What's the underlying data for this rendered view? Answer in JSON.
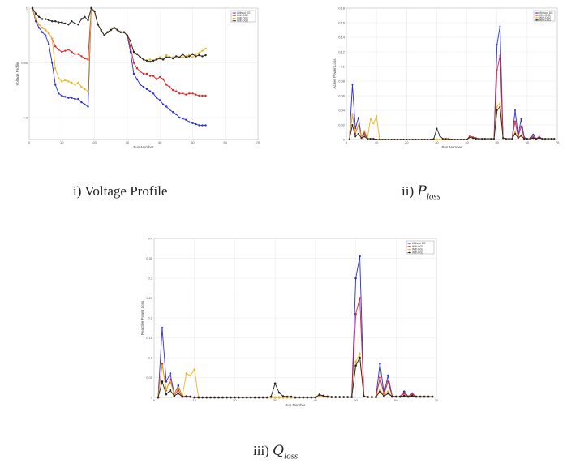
{
  "captions": {
    "voltage": "i) Voltage Profile",
    "ploss_prefix": "ii) ",
    "ploss_sym": "P",
    "ploss_sub": "loss",
    "qloss_prefix": "iii) ",
    "qloss_sym": "Q",
    "qloss_sub": "loss"
  },
  "colors": {
    "blue": "#2b2fd6",
    "red": "#e02626",
    "orange": "#f0b419",
    "black": "#222222"
  },
  "chart_data": [
    {
      "id": "voltage",
      "type": "line",
      "xlabel": "Bus Number",
      "ylabel": "Voltage Profile",
      "xlim": [
        0,
        70
      ],
      "ylim": [
        0.88,
        1.0
      ],
      "xticks": [
        0,
        10,
        20,
        30,
        40,
        50,
        60,
        70
      ],
      "yticks": [
        0.9,
        0.95,
        1.0
      ],
      "ytick_labels": [
        "0.9",
        "0.95",
        "1"
      ],
      "grid": true,
      "legend": "top-right",
      "legend_labels": [
        "Without DG",
        "With DG1",
        "With DG2",
        "With DG3"
      ],
      "series_colors": [
        "blue",
        "red",
        "orange",
        "black"
      ],
      "series": [
        {
          "values": [
            1.0,
            0.988,
            0.982,
            0.978,
            0.975,
            0.967,
            0.95,
            0.93,
            0.922,
            0.92,
            0.919,
            0.918,
            0.918,
            0.917,
            0.917,
            0.914,
            0.912,
            0.91,
            1.0,
            0.997,
            0.985,
            0.98,
            0.975,
            0.978,
            0.98,
            0.982,
            0.98,
            0.978,
            0.978,
            0.975,
            0.96,
            0.94,
            0.935,
            0.93,
            0.928,
            0.926,
            0.924,
            0.922,
            0.918,
            0.916,
            0.912,
            0.91,
            0.907,
            0.905,
            0.903,
            0.9,
            0.899,
            0.898,
            0.896,
            0.895,
            0.894,
            0.893,
            0.893,
            0.893
          ]
        },
        {
          "values": [
            1.0,
            0.99,
            0.985,
            0.982,
            0.98,
            0.977,
            0.972,
            0.965,
            0.962,
            0.96,
            0.961,
            0.962,
            0.96,
            0.958,
            0.958,
            0.956,
            0.954,
            0.953,
            1.0,
            0.997,
            0.985,
            0.98,
            0.975,
            0.978,
            0.98,
            0.982,
            0.98,
            0.978,
            0.978,
            0.975,
            0.965,
            0.95,
            0.945,
            0.942,
            0.94,
            0.94,
            0.938,
            0.938,
            0.935,
            0.937,
            0.935,
            0.93,
            0.928,
            0.925,
            0.924,
            0.922,
            0.922,
            0.921,
            0.922,
            0.922,
            0.921,
            0.92,
            0.92,
            0.92
          ]
        },
        {
          "values": [
            1.0,
            0.99,
            0.985,
            0.982,
            0.98,
            0.977,
            0.972,
            0.945,
            0.936,
            0.933,
            0.934,
            0.933,
            0.932,
            0.93,
            0.932,
            0.928,
            0.926,
            0.924,
            1.0,
            0.997,
            0.985,
            0.98,
            0.975,
            0.978,
            0.98,
            0.982,
            0.98,
            0.978,
            0.978,
            0.975,
            0.97,
            0.96,
            0.958,
            0.955,
            0.953,
            0.952,
            0.953,
            0.952,
            0.954,
            0.955,
            0.953,
            0.957,
            0.955,
            0.955,
            0.956,
            0.955,
            0.955,
            0.956,
            0.957,
            0.955,
            0.958,
            0.959,
            0.961,
            0.963
          ]
        },
        {
          "values": [
            1.0,
            0.995,
            0.992,
            0.99,
            0.99,
            0.989,
            0.988,
            0.988,
            0.987,
            0.987,
            0.986,
            0.985,
            0.988,
            0.986,
            0.985,
            0.99,
            0.992,
            0.989,
            1.0,
            0.997,
            0.985,
            0.98,
            0.975,
            0.978,
            0.98,
            0.982,
            0.98,
            0.978,
            0.978,
            0.975,
            0.97,
            0.96,
            0.958,
            0.955,
            0.953,
            0.952,
            0.951,
            0.952,
            0.953,
            0.954,
            0.953,
            0.955,
            0.955,
            0.954,
            0.956,
            0.955,
            0.958,
            0.955,
            0.956,
            0.958,
            0.956,
            0.957,
            0.956,
            0.957
          ]
        }
      ]
    },
    {
      "id": "ploss",
      "type": "line",
      "xlabel": "Bus Number",
      "ylabel": "Active Power Loss",
      "xlim": [
        0,
        70
      ],
      "ylim": [
        0,
        0.18
      ],
      "xticks": [
        0,
        10,
        20,
        30,
        40,
        50,
        60,
        70
      ],
      "yticks": [
        0,
        0.02,
        0.04,
        0.06,
        0.08,
        0.1,
        0.12,
        0.14,
        0.16,
        0.18
      ],
      "grid": true,
      "legend": "top-right",
      "legend_labels": [
        "Without DG",
        "With DG1",
        "With DG2",
        "With DG3"
      ],
      "series_colors": [
        "blue",
        "red",
        "orange",
        "black"
      ],
      "series": [
        {
          "values": [
            0,
            0.075,
            0.015,
            0.03,
            0.003,
            0.01,
            0.001,
            0.001,
            0.001,
            0,
            0,
            0,
            0,
            0,
            0,
            0,
            0,
            0,
            0,
            0,
            0,
            0,
            0,
            0,
            0,
            0,
            0,
            0,
            0,
            0,
            0,
            0,
            0,
            0,
            0,
            0,
            0,
            0,
            0,
            0,
            0.005,
            0.003,
            0.002,
            0.001,
            0.001,
            0.001,
            0.001,
            0.001,
            0.001,
            0.13,
            0.155,
            0.002,
            0.001,
            0.001,
            0.001,
            0.04,
            0.005,
            0.028,
            0.003,
            0.001,
            0.001,
            0.007,
            0.001,
            0.004,
            0.001,
            0.001,
            0.001,
            0.001,
            0.001
          ]
        },
        {
          "values": [
            0,
            0.035,
            0.008,
            0.02,
            0.003,
            0.007,
            0.001,
            0.001,
            0.001,
            0,
            0,
            0,
            0,
            0,
            0,
            0,
            0,
            0,
            0,
            0,
            0,
            0,
            0,
            0,
            0,
            0,
            0,
            0,
            0,
            0,
            0,
            0,
            0,
            0,
            0,
            0,
            0,
            0,
            0,
            0,
            0.005,
            0.003,
            0.002,
            0.001,
            0.001,
            0.001,
            0.001,
            0.001,
            0.001,
            0.095,
            0.115,
            0.002,
            0.001,
            0.001,
            0.001,
            0.025,
            0.004,
            0.018,
            0.002,
            0.001,
            0.001,
            0.004,
            0.001,
            0.003,
            0.001,
            0.001,
            0.001,
            0.001,
            0.001
          ]
        },
        {
          "values": [
            0,
            0.035,
            0.01,
            0.02,
            0.004,
            0.012,
            0.002,
            0.028,
            0.022,
            0.032,
            0.001,
            0,
            0,
            0,
            0,
            0,
            0,
            0,
            0,
            0,
            0,
            0,
            0,
            0,
            0,
            0,
            0,
            0,
            0,
            0,
            0,
            0,
            0,
            0,
            0,
            0,
            0,
            0,
            0,
            0,
            0.003,
            0.002,
            0.001,
            0.001,
            0.001,
            0.001,
            0.001,
            0.001,
            0.001,
            0.045,
            0.05,
            0.002,
            0.001,
            0.001,
            0.001,
            0.01,
            0.002,
            0.006,
            0.001,
            0.001,
            0.001,
            0.002,
            0.001,
            0.002,
            0.001,
            0.001,
            0.001,
            0.001,
            0.001
          ]
        },
        {
          "values": [
            0,
            0.02,
            0.004,
            0.008,
            0.002,
            0.004,
            0.001,
            0.001,
            0.001,
            0,
            0,
            0,
            0,
            0,
            0,
            0,
            0,
            0,
            0,
            0,
            0,
            0,
            0,
            0,
            0,
            0,
            0,
            0,
            0.001,
            0.015,
            0.005,
            0.001,
            0.001,
            0.001,
            0,
            0,
            0,
            0,
            0,
            0,
            0.003,
            0.002,
            0.001,
            0.001,
            0.001,
            0.001,
            0.001,
            0.001,
            0.001,
            0.04,
            0.045,
            0.002,
            0.001,
            0.001,
            0.001,
            0.008,
            0.002,
            0.005,
            0.001,
            0.001,
            0.001,
            0.002,
            0.001,
            0.002,
            0.001,
            0.001,
            0.001,
            0.001,
            0.001
          ]
        }
      ]
    },
    {
      "id": "qloss",
      "type": "line",
      "xlabel": "Bus Number",
      "ylabel": "Reactive Power Loss",
      "xlim": [
        0,
        70
      ],
      "ylim": [
        0,
        0.4
      ],
      "xticks": [
        0,
        10,
        20,
        30,
        40,
        50,
        60,
        70
      ],
      "yticks": [
        0,
        0.05,
        0.1,
        0.15,
        0.2,
        0.25,
        0.3,
        0.35,
        0.4
      ],
      "grid": true,
      "legend": "top-right",
      "legend_labels": [
        "Without DG",
        "With DG1",
        "With DG2",
        "With DG3"
      ],
      "series_colors": [
        "blue",
        "red",
        "orange",
        "black"
      ],
      "series": [
        {
          "values": [
            0,
            0.175,
            0.04,
            0.06,
            0.008,
            0.03,
            0.002,
            0.003,
            0.002,
            0,
            0,
            0,
            0,
            0,
            0,
            0,
            0,
            0,
            0,
            0,
            0,
            0,
            0,
            0,
            0,
            0,
            0,
            0,
            0,
            0,
            0,
            0,
            0,
            0,
            0,
            0,
            0,
            0,
            0,
            0,
            0.007,
            0.004,
            0.002,
            0.001,
            0.001,
            0.001,
            0.001,
            0.001,
            0.001,
            0.3,
            0.355,
            0.003,
            0.001,
            0.001,
            0.001,
            0.085,
            0.01,
            0.055,
            0.004,
            0.002,
            0.002,
            0.015,
            0.002,
            0.01,
            0.002,
            0.002,
            0.002,
            0.002,
            0.002
          ]
        },
        {
          "values": [
            0,
            0.085,
            0.018,
            0.045,
            0.006,
            0.018,
            0.002,
            0.003,
            0.002,
            0,
            0,
            0,
            0,
            0,
            0,
            0,
            0,
            0,
            0,
            0,
            0,
            0,
            0,
            0,
            0,
            0,
            0,
            0,
            0,
            0,
            0,
            0,
            0,
            0,
            0,
            0,
            0,
            0,
            0,
            0,
            0.006,
            0.004,
            0.002,
            0.001,
            0.001,
            0.001,
            0.001,
            0.001,
            0.001,
            0.21,
            0.25,
            0.003,
            0.001,
            0.001,
            0.001,
            0.05,
            0.008,
            0.04,
            0.003,
            0.002,
            0.002,
            0.01,
            0.002,
            0.008,
            0.002,
            0.002,
            0.002,
            0.002,
            0.002
          ]
        },
        {
          "values": [
            0,
            0.08,
            0.02,
            0.04,
            0.008,
            0.025,
            0.004,
            0.06,
            0.055,
            0.07,
            0.002,
            0,
            0,
            0,
            0,
            0,
            0,
            0,
            0,
            0,
            0,
            0,
            0,
            0,
            0,
            0,
            0,
            0,
            0,
            0,
            0,
            0,
            0,
            0,
            0,
            0,
            0,
            0,
            0,
            0,
            0.004,
            0.002,
            0.001,
            0.001,
            0.001,
            0.001,
            0.001,
            0.001,
            0.001,
            0.09,
            0.11,
            0.003,
            0.001,
            0.001,
            0.001,
            0.02,
            0.004,
            0.015,
            0.002,
            0.002,
            0.002,
            0.005,
            0.002,
            0.004,
            0.002,
            0.002,
            0.002,
            0.002,
            0.002
          ]
        },
        {
          "values": [
            0,
            0.04,
            0.008,
            0.018,
            0.004,
            0.01,
            0.002,
            0.002,
            0.002,
            0,
            0,
            0,
            0,
            0,
            0,
            0,
            0,
            0,
            0,
            0,
            0,
            0,
            0,
            0,
            0,
            0,
            0,
            0,
            0.002,
            0.035,
            0.012,
            0.003,
            0.002,
            0.002,
            0,
            0,
            0,
            0,
            0,
            0,
            0.007,
            0.004,
            0.002,
            0.001,
            0.001,
            0.001,
            0.001,
            0.001,
            0.001,
            0.08,
            0.1,
            0.003,
            0.001,
            0.001,
            0.001,
            0.015,
            0.003,
            0.01,
            0.002,
            0.002,
            0.002,
            0.004,
            0.002,
            0.004,
            0.002,
            0.002,
            0.002,
            0.002,
            0.002
          ]
        }
      ]
    }
  ]
}
